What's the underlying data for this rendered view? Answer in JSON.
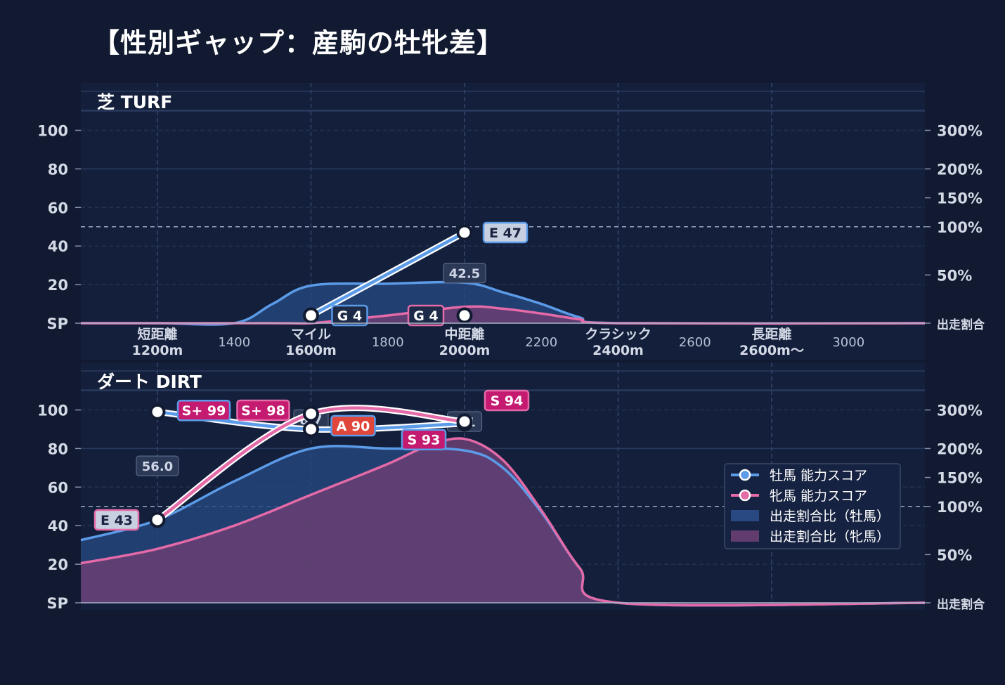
{
  "title": "【性別ギャップ：産駒の牡牝差】",
  "colors": {
    "background": "#111a30",
    "panel": "#131f3b",
    "male": "#5b9be8",
    "female": "#e46aa8",
    "male_fill": "#27477f",
    "female_fill": "#6a3f73",
    "grade_E": "#c8cfe0",
    "grade_G": "#1e2b48",
    "grade_A": "#e0473a",
    "grade_S": "#c41a70"
  },
  "legend": [
    {
      "label": "牡馬 能力スコア",
      "kind": "line",
      "color": "#5b9be8"
    },
    {
      "label": "牝馬 能力スコア",
      "kind": "line",
      "color": "#e46aa8"
    },
    {
      "label": "出走割合比（牡馬）",
      "kind": "area",
      "color": "#2b4e8a"
    },
    {
      "label": "出走割合比（牝馬）",
      "kind": "area",
      "color": "#6a3f73"
    }
  ],
  "chart_data": [
    {
      "type": "line",
      "panel_title": "芝 TURF",
      "x_ticks": [
        {
          "x": 1200,
          "label": "短距離",
          "sub": "1200m",
          "category": true
        },
        {
          "x": 1400,
          "label": "1400",
          "category": false
        },
        {
          "x": 1600,
          "label": "マイル",
          "sub": "1600m",
          "category": true
        },
        {
          "x": 1800,
          "label": "1800",
          "category": false
        },
        {
          "x": 2000,
          "label": "中距離",
          "sub": "2000m",
          "category": true
        },
        {
          "x": 2200,
          "label": "2200",
          "category": false
        },
        {
          "x": 2400,
          "label": "クラシック",
          "sub": "2400m",
          "category": true
        },
        {
          "x": 2600,
          "label": "2600",
          "category": false
        },
        {
          "x": 2800,
          "label": "長距離",
          "sub": "2600m〜",
          "category": true
        },
        {
          "x": 3000,
          "label": "3000",
          "category": false
        }
      ],
      "y_ticks": [
        "SP",
        "20",
        "40",
        "60",
        "80",
        "100"
      ],
      "y2_ticks": [
        "出走割合",
        "50%",
        "100%",
        "150%",
        "200%",
        "300%"
      ],
      "reference_line_y2": "100%",
      "series": [
        {
          "name": "牡馬 能力スコア",
          "points": [
            {
              "x": 1600,
              "y": 4,
              "label": "G 4",
              "grade": "G"
            },
            {
              "x": 2000,
              "y": 47,
              "label": "E 47",
              "grade": "E"
            }
          ]
        },
        {
          "name": "牝馬 能力スコア",
          "points": [
            {
              "x": 2000,
              "y": 4,
              "label": "G 4",
              "grade": "G"
            }
          ]
        }
      ],
      "ratio_male": [
        [
          1000,
          0
        ],
        [
          1200,
          0
        ],
        [
          1400,
          0
        ],
        [
          1500,
          10
        ],
        [
          1600,
          19.5
        ],
        [
          1800,
          20.5
        ],
        [
          2000,
          21
        ],
        [
          2100,
          16
        ],
        [
          2200,
          10
        ],
        [
          2300,
          3
        ],
        [
          2400,
          0
        ],
        [
          3200,
          0
        ]
      ],
      "ratio_female": [
        [
          1000,
          0
        ],
        [
          1500,
          0
        ],
        [
          1600,
          0
        ],
        [
          1700,
          2
        ],
        [
          1800,
          4
        ],
        [
          2000,
          8.5
        ],
        [
          2100,
          7.5
        ],
        [
          2200,
          5
        ],
        [
          2300,
          2
        ],
        [
          2400,
          0
        ],
        [
          3200,
          0
        ]
      ],
      "annotations": [
        {
          "x": 2000,
          "y": 26,
          "text": "42.5"
        }
      ]
    },
    {
      "type": "line",
      "panel_title": "ダート DIRT",
      "x_ticks": [
        1200,
        1600,
        2000,
        2400,
        2800
      ],
      "y_ticks": [
        "SP",
        "20",
        "40",
        "60",
        "80",
        "100"
      ],
      "y2_ticks": [
        "出走割合",
        "50%",
        "100%",
        "150%",
        "200%",
        "300%"
      ],
      "reference_line_y2": "100%",
      "series": [
        {
          "name": "牡馬 能力スコア",
          "points": [
            {
              "x": 1200,
              "y": 99,
              "label": "S+ 99",
              "grade": "S+"
            },
            {
              "x": 1600,
              "y": 90,
              "label": "A 90",
              "grade": "A"
            },
            {
              "x": 2000,
              "y": 93,
              "label": "S 93",
              "grade": "S"
            }
          ]
        },
        {
          "name": "牝馬 能力スコア",
          "points": [
            {
              "x": 1200,
              "y": 43,
              "label": "E 43",
              "grade": "E"
            },
            {
              "x": 1600,
              "y": 98,
              "label": "S+ 98",
              "grade": "S+"
            },
            {
              "x": 2000,
              "y": 94,
              "label": "S 94",
              "grade": "S"
            }
          ]
        }
      ],
      "ratio_male": [
        [
          1000,
          32.5
        ],
        [
          1200,
          43
        ],
        [
          1400,
          63
        ],
        [
          1600,
          80
        ],
        [
          1800,
          80
        ],
        [
          2000,
          79
        ],
        [
          2100,
          70
        ],
        [
          2200,
          47
        ],
        [
          2300,
          18
        ],
        [
          2400,
          0
        ],
        [
          3200,
          0
        ]
      ],
      "ratio_female": [
        [
          1000,
          20.5
        ],
        [
          1200,
          28
        ],
        [
          1400,
          40
        ],
        [
          1600,
          56
        ],
        [
          1800,
          72
        ],
        [
          1900,
          81
        ],
        [
          2000,
          85
        ],
        [
          2100,
          74
        ],
        [
          2200,
          48
        ],
        [
          2300,
          18
        ],
        [
          2400,
          0
        ],
        [
          3200,
          0
        ]
      ],
      "annotations": [
        {
          "x": 1200,
          "y": 71,
          "text": "56.0"
        },
        {
          "x": 1600,
          "y": 95,
          "text": "8.7"
        },
        {
          "x": 2000,
          "y": 94,
          "text": "1.1"
        }
      ]
    }
  ]
}
